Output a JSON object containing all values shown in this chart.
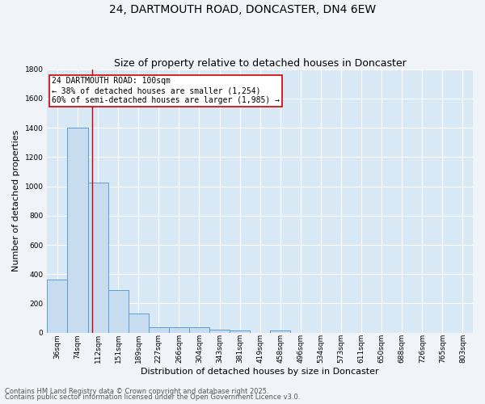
{
  "title1": "24, DARTMOUTH ROAD, DONCASTER, DN4 6EW",
  "title2": "Size of property relative to detached houses in Doncaster",
  "xlabel": "Distribution of detached houses by size in Doncaster",
  "ylabel": "Number of detached properties",
  "categories": [
    "36sqm",
    "74sqm",
    "112sqm",
    "151sqm",
    "189sqm",
    "227sqm",
    "266sqm",
    "304sqm",
    "343sqm",
    "381sqm",
    "419sqm",
    "458sqm",
    "496sqm",
    "534sqm",
    "573sqm",
    "611sqm",
    "650sqm",
    "688sqm",
    "726sqm",
    "765sqm",
    "803sqm"
  ],
  "values": [
    360,
    1400,
    1025,
    290,
    130,
    38,
    35,
    38,
    20,
    15,
    0,
    15,
    0,
    0,
    0,
    0,
    0,
    0,
    0,
    0,
    0
  ],
  "bar_color": "#c8dcf0",
  "bar_edge_color": "#5b9bd5",
  "grid_color": "#ffffff",
  "bg_color": "#d8e8f4",
  "fig_bg_color": "#f0f4f8",
  "ylim": [
    0,
    1800
  ],
  "yticks": [
    0,
    200,
    400,
    600,
    800,
    1000,
    1200,
    1400,
    1600,
    1800
  ],
  "vline_x": 1.72,
  "vline_color": "#cc0000",
  "annotation_text": "24 DARTMOUTH ROAD: 100sqm\n← 38% of detached houses are smaller (1,254)\n60% of semi-detached houses are larger (1,985) →",
  "annotation_box_color": "#cc0000",
  "footer1": "Contains HM Land Registry data © Crown copyright and database right 2025.",
  "footer2": "Contains public sector information licensed under the Open Government Licence v3.0.",
  "title1_fontsize": 10,
  "title2_fontsize": 9,
  "tick_fontsize": 6.5,
  "ylabel_fontsize": 8,
  "xlabel_fontsize": 8,
  "footer_fontsize": 6,
  "ann_fontsize": 7
}
